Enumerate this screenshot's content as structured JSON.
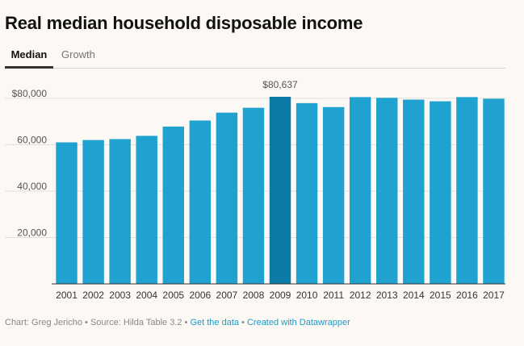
{
  "title": "Real median household disposable income",
  "tabs": [
    {
      "label": "Median",
      "active": true
    },
    {
      "label": "Growth",
      "active": false
    }
  ],
  "colors": {
    "bar": "#1fa2d0",
    "highlight": "#0a7ba6",
    "grid": "#e2ded9",
    "axis": "#333333"
  },
  "chart_data": {
    "type": "bar",
    "categories": [
      "2001",
      "2002",
      "2003",
      "2004",
      "2005",
      "2006",
      "2007",
      "2008",
      "2009",
      "2010",
      "2011",
      "2012",
      "2013",
      "2014",
      "2015",
      "2016",
      "2017"
    ],
    "values": [
      61000,
      62000,
      62400,
      63800,
      67800,
      70400,
      73800,
      75900,
      80637,
      77900,
      76200,
      80500,
      80200,
      79400,
      78700,
      80500,
      79800
    ],
    "highlight_index": 8,
    "highlight_label": "$80,637",
    "yticks": [
      {
        "value": 20000,
        "label": "20,000"
      },
      {
        "value": 40000,
        "label": "40,000"
      },
      {
        "value": 60000,
        "label": "60,000"
      },
      {
        "value": 80000,
        "label": "$80,000"
      }
    ],
    "ylim": [
      0,
      80637
    ],
    "grid": true
  },
  "footer": {
    "credit": "Chart: Greg Jericho • Source: Hilda Table 3.2 • ",
    "get_data": "Get the data",
    "separator": " • ",
    "created_with": "Created with Datawrapper"
  }
}
